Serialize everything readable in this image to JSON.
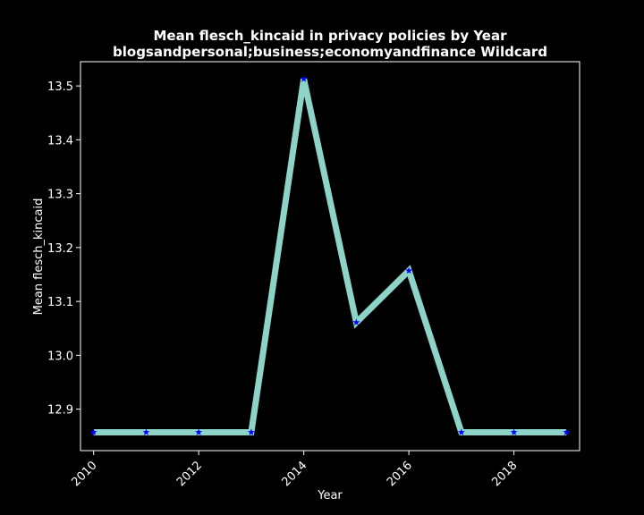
{
  "chart_data": {
    "type": "line",
    "title": "Mean flesch_kincaid in privacy policies by Year",
    "subtitle": "blogsandpersonal;business;economyandfinance Wildcard",
    "xlabel": "Year",
    "ylabel": "Mean flesch_kincaid",
    "xlim": [
      2009.75,
      2019.25
    ],
    "ylim": [
      12.823,
      13.545
    ],
    "x_ticks": [
      2010,
      2012,
      2014,
      2016,
      2018
    ],
    "y_ticks": [
      12.9,
      13.0,
      13.1,
      13.2,
      13.3,
      13.4,
      13.5
    ],
    "grid": false,
    "legend": "none",
    "series": [
      {
        "x": [
          2010,
          2011,
          2012,
          2013,
          2014,
          2015,
          2016,
          2017,
          2018,
          2019
        ],
        "y": [
          12.857,
          12.857,
          12.857,
          12.857,
          13.513,
          13.061,
          13.157,
          12.857,
          12.857,
          12.857
        ]
      }
    ],
    "colors": {
      "background": "#000000",
      "line": "#8dd3c7",
      "marker": "#0000ff",
      "axes": "#ffffff",
      "text": "#ffffff"
    }
  }
}
